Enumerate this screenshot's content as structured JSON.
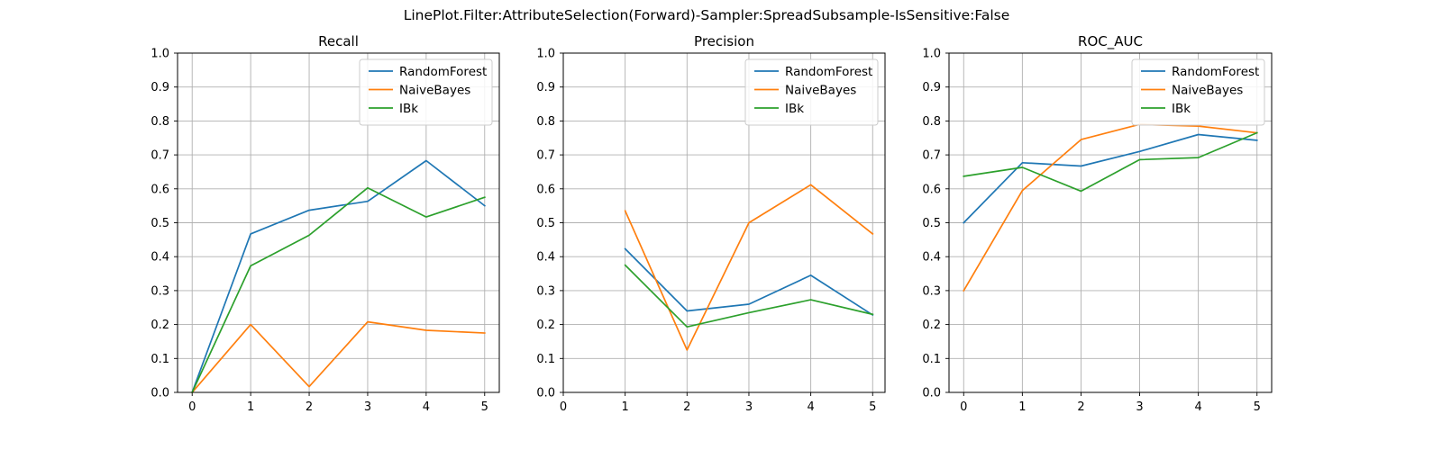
{
  "figure": {
    "suptitle": "LinePlot.Filter:AttributeSelection(Forward)-Sampler:SpreadSubsample-IsSensitive:False"
  },
  "colors": {
    "RandomForest": "#1f77b4",
    "NaiveBayes": "#ff7f0e",
    "IBk": "#2ca02c"
  },
  "chart_data": [
    {
      "type": "line",
      "title": "Recall",
      "xlabel": "",
      "ylabel": "",
      "xlim": [
        -0.25,
        5.25
      ],
      "ylim": [
        0,
        1
      ],
      "xticks": [
        "0",
        "1",
        "2",
        "3",
        "4",
        "5"
      ],
      "yticks": [
        "0.0",
        "0.1",
        "0.2",
        "0.3",
        "0.4",
        "0.5",
        "0.6",
        "0.7",
        "0.8",
        "0.9",
        "1.0"
      ],
      "grid": true,
      "legend": "top-right",
      "series": [
        {
          "name": "RandomForest",
          "x": [
            0,
            1,
            2,
            3,
            4,
            5
          ],
          "values": [
            0.0,
            0.467,
            0.537,
            0.563,
            0.683,
            0.55
          ]
        },
        {
          "name": "NaiveBayes",
          "x": [
            0,
            1,
            2,
            3,
            4,
            5
          ],
          "values": [
            0.0,
            0.2,
            0.017,
            0.208,
            0.183,
            0.175
          ]
        },
        {
          "name": "IBk",
          "x": [
            0,
            1,
            2,
            3,
            4,
            5
          ],
          "values": [
            0.0,
            0.373,
            0.463,
            0.603,
            0.517,
            0.575
          ]
        }
      ]
    },
    {
      "type": "line",
      "title": "Precision",
      "xlabel": "",
      "ylabel": "",
      "xlim": [
        0,
        5.2
      ],
      "ylim": [
        0,
        1
      ],
      "xticks": [
        "0",
        "1",
        "2",
        "3",
        "4",
        "5"
      ],
      "yticks": [
        "0.0",
        "0.1",
        "0.2",
        "0.3",
        "0.4",
        "0.5",
        "0.6",
        "0.7",
        "0.8",
        "0.9",
        "1.0"
      ],
      "grid": true,
      "legend": "top-right",
      "series": [
        {
          "name": "RandomForest",
          "x": [
            1,
            2,
            3,
            4,
            5
          ],
          "values": [
            0.423,
            0.24,
            0.26,
            0.345,
            0.228
          ]
        },
        {
          "name": "NaiveBayes",
          "x": [
            1,
            2,
            3,
            4,
            5
          ],
          "values": [
            0.535,
            0.125,
            0.5,
            0.612,
            0.467
          ]
        },
        {
          "name": "IBk",
          "x": [
            1,
            2,
            3,
            4,
            5
          ],
          "values": [
            0.375,
            0.193,
            0.235,
            0.273,
            0.23
          ]
        }
      ]
    },
    {
      "type": "line",
      "title": "ROC_AUC",
      "xlabel": "",
      "ylabel": "",
      "xlim": [
        -0.25,
        5.25
      ],
      "ylim": [
        0,
        1
      ],
      "xticks": [
        "0",
        "1",
        "2",
        "3",
        "4",
        "5"
      ],
      "yticks": [
        "0.0",
        "0.1",
        "0.2",
        "0.3",
        "0.4",
        "0.5",
        "0.6",
        "0.7",
        "0.8",
        "0.9",
        "1.0"
      ],
      "grid": true,
      "legend": "top-right",
      "series": [
        {
          "name": "RandomForest",
          "x": [
            0,
            1,
            2,
            3,
            4,
            5
          ],
          "values": [
            0.5,
            0.677,
            0.667,
            0.71,
            0.76,
            0.743
          ]
        },
        {
          "name": "NaiveBayes",
          "x": [
            0,
            1,
            2,
            3,
            4,
            5
          ],
          "values": [
            0.3,
            0.595,
            0.745,
            0.79,
            0.785,
            0.765
          ]
        },
        {
          "name": "IBk",
          "x": [
            0,
            1,
            2,
            3,
            4,
            5
          ],
          "values": [
            0.637,
            0.663,
            0.593,
            0.686,
            0.692,
            0.765
          ]
        }
      ]
    }
  ]
}
